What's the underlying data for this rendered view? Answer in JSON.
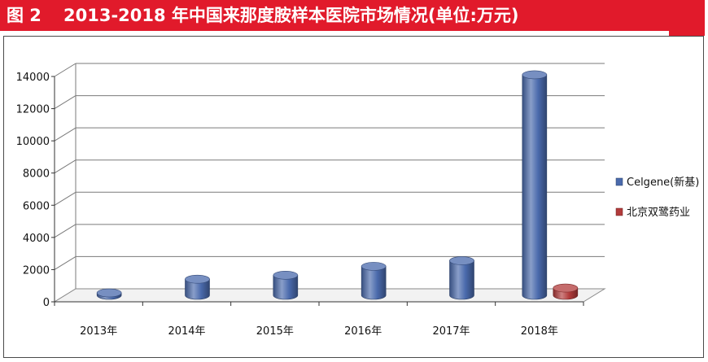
{
  "figure": {
    "label": "图 2",
    "title": "2013-2018 年中国来那度胺样本医院市场情况(单位:万元)"
  },
  "colors": {
    "title_bar": "#e11a2b",
    "series_celgene": "#4a6aac",
    "series_shuanglu": "#b23b3b"
  },
  "chart_data": {
    "type": "bar",
    "title": "2013-2018 年中国来那度胺样本医院市场情况(单位:万元)",
    "categories": [
      "2013年",
      "2014年",
      "2015年",
      "2016年",
      "2017年",
      "2018年"
    ],
    "series": [
      {
        "name": "Celgene(新基)",
        "values": [
          150,
          1000,
          1250,
          1800,
          2150,
          13700
        ],
        "color": "#4a6aac"
      },
      {
        "name": "北京双鹭药业",
        "values": [
          null,
          null,
          null,
          null,
          null,
          450
        ],
        "color": "#b23b3b"
      }
    ],
    "y_ticks": [
      "0",
      "2000",
      "4000",
      "6000",
      "8000",
      "10000",
      "12000",
      "14000"
    ],
    "ylim": [
      0,
      14000
    ],
    "grid": true,
    "legend_position": "right",
    "style": "3d-cylinder"
  }
}
